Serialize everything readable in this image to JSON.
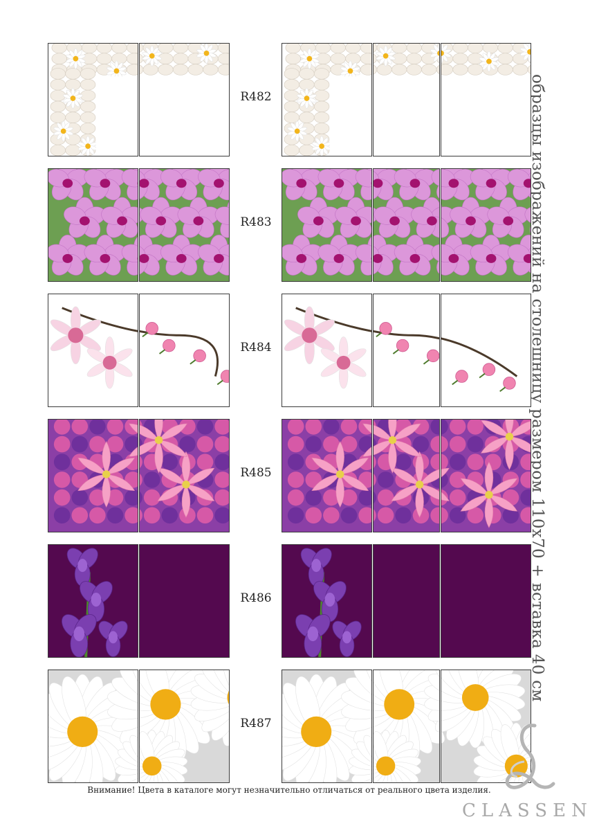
{
  "page": {
    "title": "образцы изображений на столешницу размером 110х70 + вставка 40 см",
    "disclaimer": "Внимание! Цвета в каталоге могут незначительно отличаться от реального цвета изделия.",
    "brand": "CLASSEN"
  },
  "samples": [
    {
      "code": "R482",
      "motif": "daisies-on-pebbles"
    },
    {
      "code": "R483",
      "motif": "pink-orchids"
    },
    {
      "code": "R484",
      "motif": "pink-blossom-branch"
    },
    {
      "code": "R485",
      "motif": "pink-lilies-bouquet"
    },
    {
      "code": "R486",
      "motif": "purple-iris"
    },
    {
      "code": "R487",
      "motif": "white-daisies"
    }
  ],
  "colors": {
    "border": "#3a3a3a",
    "orchid": "#d88ad6",
    "iris_bg": "#54094f",
    "daisy_center": "#f2b51c",
    "lily": "#f49ac1",
    "pebble": "#f3ede4"
  }
}
